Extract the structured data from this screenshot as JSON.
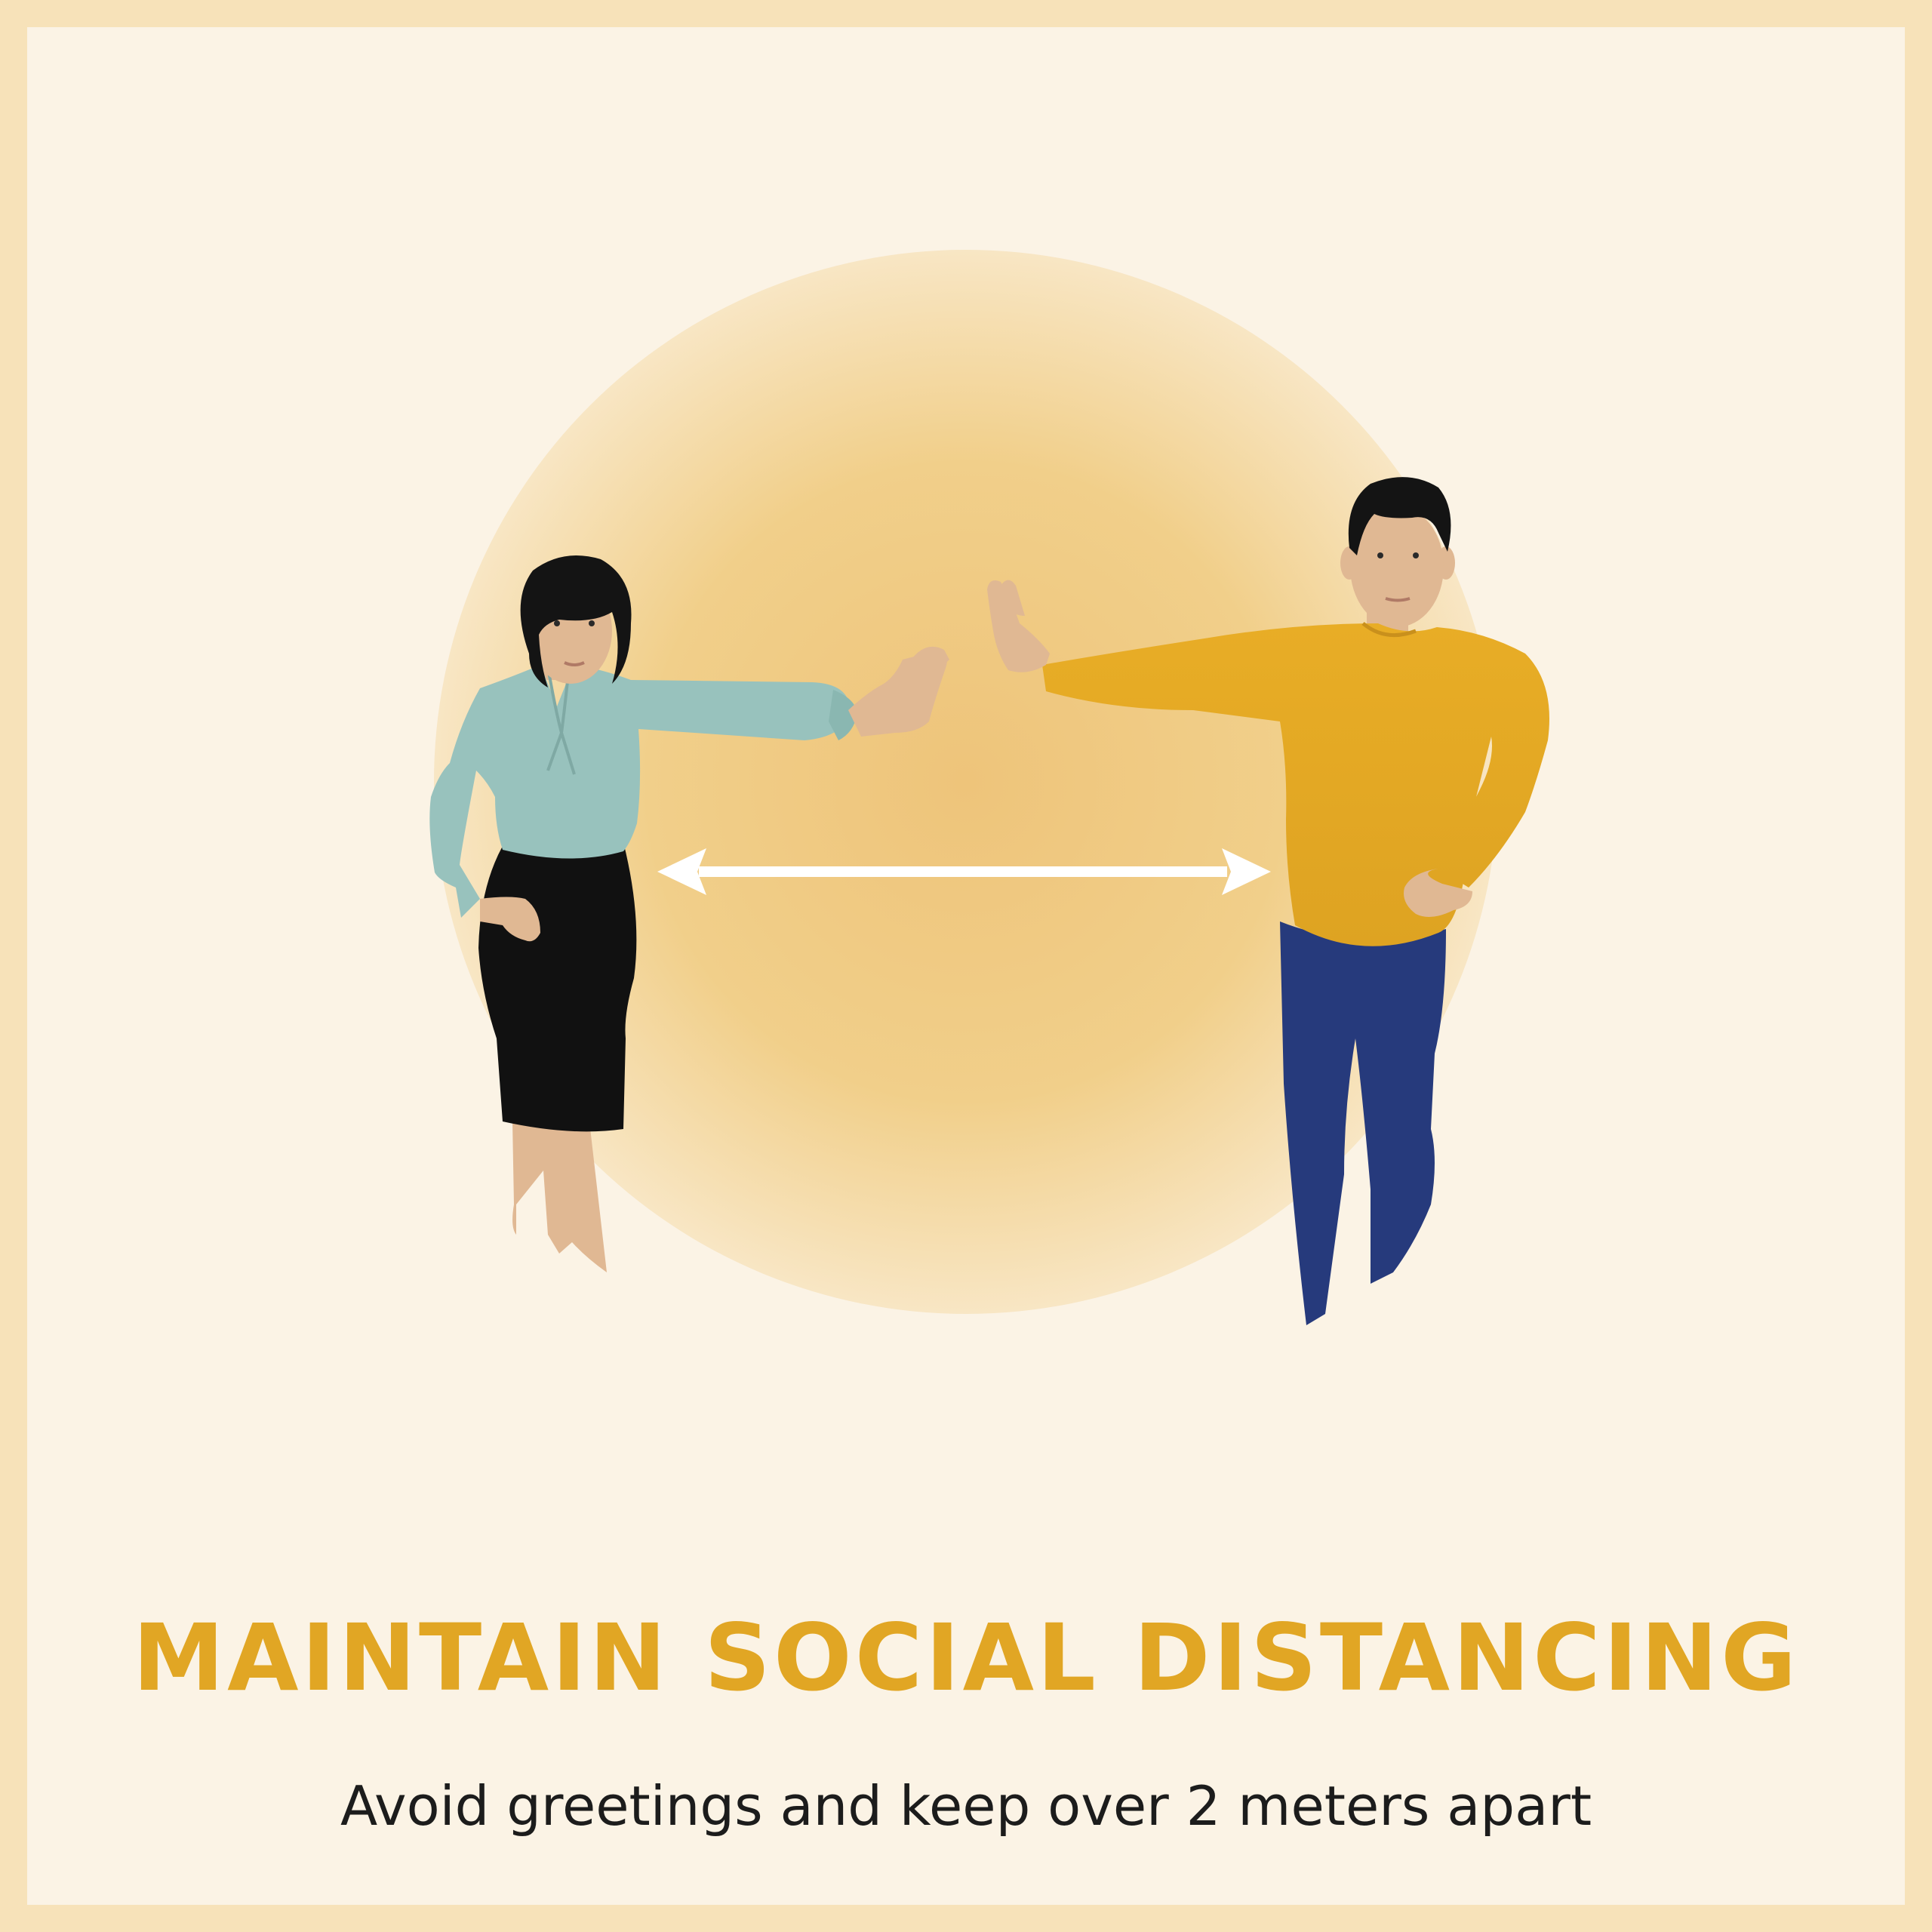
{
  "poster": {
    "headline": "MAINTAIN SOCIAL DISTANCING",
    "subline": "Avoid greetings and keep over 2 meters apart"
  },
  "colors": {
    "border": "#f7e2b9",
    "background": "#fbf3e5",
    "accent": "#e1a624",
    "glow": "#eec47a",
    "blouse": "#98c2bd",
    "skirt": "#111111",
    "sweater": "#e5aa25",
    "jeans": "#263a7c",
    "skin": "#e0b893",
    "hair": "#141414",
    "arrow": "#ffffff"
  },
  "icons": [
    "woman-figure-icon",
    "man-figure-icon",
    "double-arrow-icon"
  ]
}
